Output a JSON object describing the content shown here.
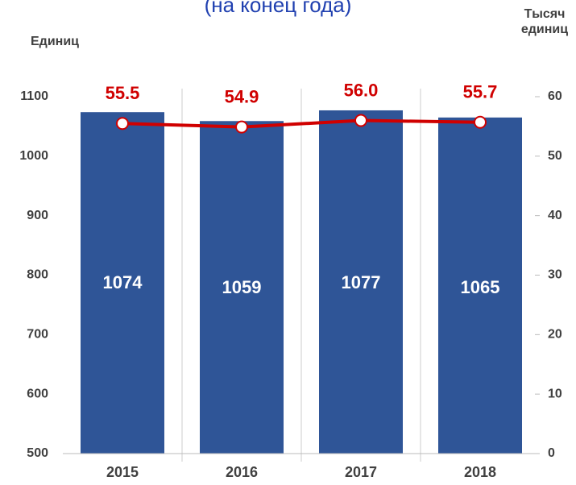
{
  "chart_data": {
    "type": "bar_line",
    "subtitle": "(на конец года)",
    "y_label": "Единиц",
    "y2_label": "Тысяч единиц",
    "categories": [
      "2015",
      "2016",
      "2017",
      "2018"
    ],
    "series": [
      {
        "color": "#2f5597",
        "values": [
          1074,
          1059,
          1077,
          1065
        ]
      },
      {
        "color": "#d00000",
        "axis": "y2",
        "values": [
          55.5,
          54.9,
          56.0,
          55.7
        ],
        "value_labels": [
          "55.5",
          "54.9",
          "56.0",
          "55.7"
        ]
      }
    ],
    "ylim": [
      500,
      1100
    ],
    "yticks": [
      500,
      600,
      700,
      800,
      900,
      1000,
      1100
    ],
    "y2lim": [
      0,
      60
    ],
    "y2ticks": [
      0,
      10,
      20,
      30,
      40,
      50,
      60
    ]
  }
}
